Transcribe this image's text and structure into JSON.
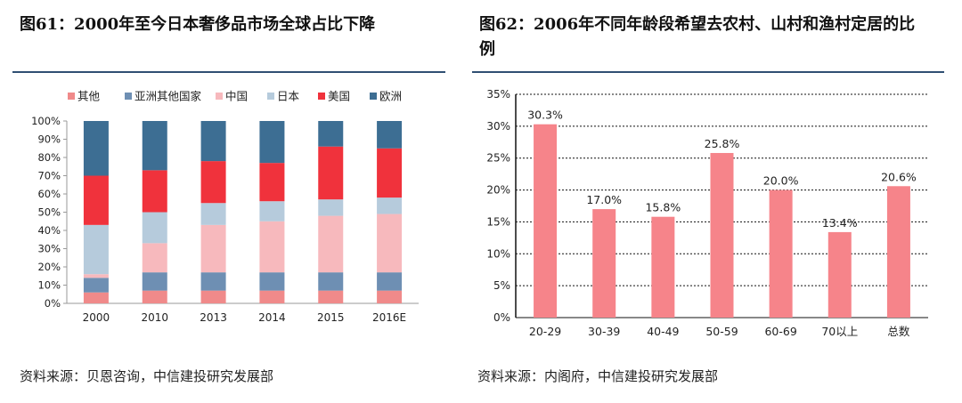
{
  "left": {
    "title": "图61：2000年至今日本奢侈品市场全球占比下降",
    "source": "资料来源：贝恩咨询，中信建投研究发展部"
  },
  "right": {
    "title_line1": "图62：2006年不同年龄段希望去农村、山村和渔村定居的比",
    "title_line2": "例",
    "source": "资料来源：内阁府，中信建投研究发展部"
  },
  "chart_data": [
    {
      "type": "bar",
      "stacked": true,
      "percent": true,
      "title": "2000年至今日本奢侈品市场全球占比下降",
      "categories": [
        "2000",
        "2010",
        "2013",
        "2014",
        "2015",
        "2016E"
      ],
      "yticks": [
        "0%",
        "10%",
        "20%",
        "30%",
        "40%",
        "50%",
        "60%",
        "70%",
        "80%",
        "90%",
        "100%"
      ],
      "ylim": [
        0,
        100
      ],
      "legend_position": "top",
      "series": [
        {
          "name": "其他",
          "color": "#f08a8a",
          "values": [
            6,
            7,
            7,
            7,
            7,
            7
          ]
        },
        {
          "name": "亚洲其他国家",
          "color": "#6e8fb3",
          "values": [
            8,
            10,
            10,
            10,
            10,
            10
          ]
        },
        {
          "name": "中国",
          "color": "#f7b9bd",
          "values": [
            2,
            16,
            26,
            28,
            31,
            32
          ]
        },
        {
          "name": "日本",
          "color": "#b6cbdc",
          "values": [
            27,
            17,
            12,
            11,
            9,
            9
          ]
        },
        {
          "name": "美国",
          "color": "#f0323c",
          "values": [
            27,
            23,
            23,
            21,
            29,
            27
          ]
        },
        {
          "name": "欧洲",
          "color": "#3d6e93",
          "values": [
            30,
            27,
            22,
            23,
            14,
            15
          ]
        }
      ]
    },
    {
      "type": "bar",
      "title": "2006年不同年龄段希望去农村、山村和渔村定居的比例",
      "categories": [
        "20-29",
        "30-39",
        "40-49",
        "50-59",
        "60-69",
        "70以上",
        "总数"
      ],
      "values": [
        30.3,
        17.0,
        15.8,
        25.8,
        20.0,
        13.4,
        20.6
      ],
      "data_labels": [
        "30.3%",
        "17.0%",
        "15.8%",
        "25.8%",
        "20.0%",
        "13.4%",
        "20.6%"
      ],
      "yticks": [
        "0%",
        "5%",
        "10%",
        "15%",
        "20%",
        "25%",
        "30%",
        "35%"
      ],
      "ylim": [
        0,
        35
      ],
      "bar_color": "#f6848a",
      "grid": true
    }
  ]
}
